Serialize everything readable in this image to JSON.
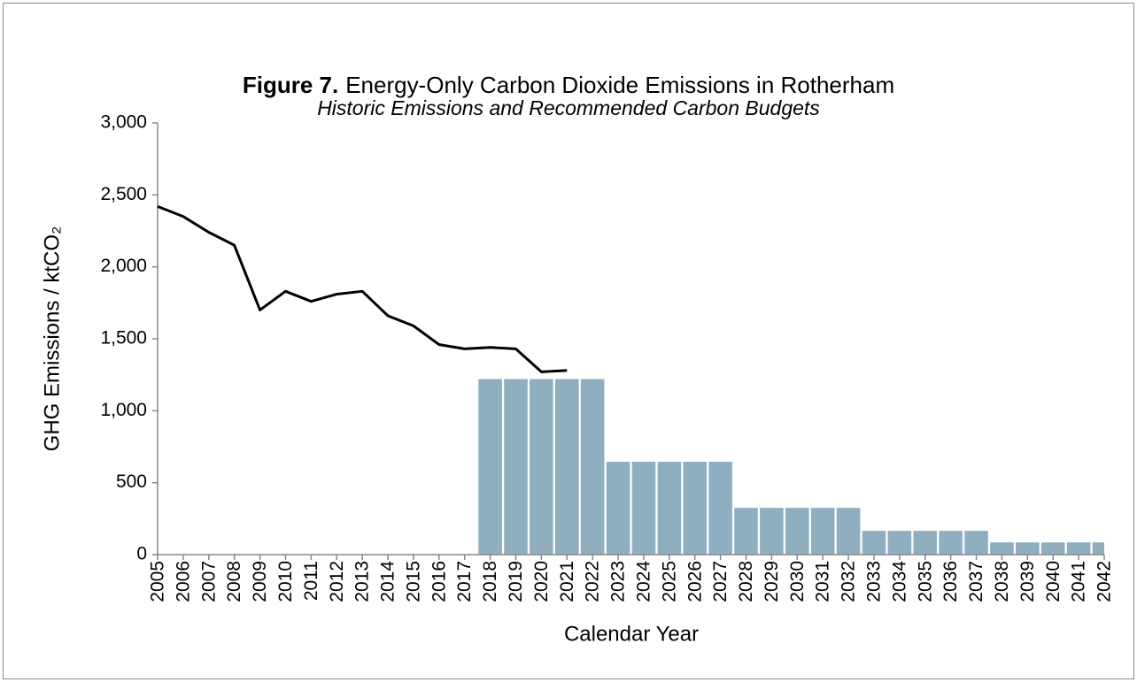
{
  "chart_data": {
    "type": "bar",
    "figure_label": "Figure 7.",
    "title": "Energy-Only Carbon Dioxide Emissions in Rotherham",
    "subtitle": "Historic Emissions and Recommended Carbon Budgets",
    "x_label": "Calendar Year",
    "y_label": "GHG Emissions / ktCO₂",
    "categories": [
      "2005",
      "2006",
      "2007",
      "2008",
      "2009",
      "2010",
      "2011",
      "2012",
      "2013",
      "2014",
      "2015",
      "2016",
      "2017",
      "2018",
      "2019",
      "2020",
      "2021",
      "2022",
      "2023",
      "2024",
      "2025",
      "2026",
      "2027",
      "2028",
      "2029",
      "2030",
      "2031",
      "2032",
      "2033",
      "2034",
      "2035",
      "2036",
      "2037",
      "2038",
      "2039",
      "2040",
      "2041",
      "2042"
    ],
    "series": [
      {
        "type": "bar",
        "color": "#8faec0",
        "values": [
          null,
          null,
          null,
          null,
          null,
          null,
          null,
          null,
          null,
          null,
          null,
          null,
          null,
          1220,
          1220,
          1220,
          1220,
          1220,
          645,
          645,
          645,
          645,
          645,
          325,
          325,
          325,
          325,
          325,
          165,
          165,
          165,
          165,
          165,
          85,
          85,
          85,
          85,
          85
        ]
      },
      {
        "type": "line",
        "color": "#000000",
        "values": [
          2420,
          2350,
          2240,
          2150,
          1700,
          1830,
          1760,
          1810,
          1830,
          1660,
          1590,
          1460,
          1430,
          1440,
          1430,
          1270,
          1280,
          null,
          null,
          null,
          null,
          null,
          null,
          null,
          null,
          null,
          null,
          null,
          null,
          null,
          null,
          null,
          null,
          null,
          null,
          null,
          null,
          null
        ]
      }
    ],
    "ylim": [
      0,
      3000
    ],
    "yticks": [
      0,
      500,
      {
        "value": 1000,
        "label": "1,000"
      },
      {
        "value": 1500,
        "label": "1,500"
      },
      {
        "value": 2000,
        "label": "2,000"
      },
      {
        "value": 2500,
        "label": "2,500"
      },
      {
        "value": 3000,
        "label": "3,000"
      }
    ],
    "grid": false
  }
}
